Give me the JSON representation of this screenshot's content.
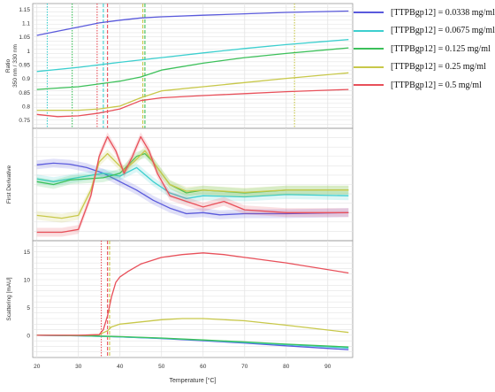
{
  "colors": {
    "s1": "#5a5adc",
    "s2": "#3ccfcf",
    "s3": "#3cc05a",
    "s4": "#c8c84a",
    "s5": "#e8505a",
    "grid": "#e4e4e4",
    "axis": "#9a9a9a",
    "text": "#333333"
  },
  "legend": [
    {
      "label": "[TTPBgp12] = 0.0338 mg/ml",
      "color": "#5a5adc"
    },
    {
      "label": "[TTPBgp12] = 0.0675 mg/ml",
      "color": "#3ccfcf"
    },
    {
      "label": "[TTPBgp12] = 0.125 mg/ml",
      "color": "#3cc05a"
    },
    {
      "label": "[TTPBgp12] = 0.25 mg/ml",
      "color": "#c8c84a"
    },
    {
      "label": "[TTPBgp12] = 0.5 mg/ml",
      "color": "#e8505a"
    }
  ],
  "chart_data": [
    {
      "type": "line",
      "panel": "ratio",
      "ylabel": "Ratio\n350 nm / 330 nm",
      "ylim": [
        0.72,
        1.17
      ],
      "yticks": [
        "1.15",
        "1.1",
        "1.05",
        "1",
        "0.95",
        "0.9",
        "0.85",
        "0.8",
        "0.75"
      ],
      "xlim": [
        19,
        96
      ],
      "grid": true,
      "series": [
        {
          "name": "[TTPBgp12] = 0.0338 mg/ml",
          "color": "#5a5adc",
          "x": [
            20,
            25,
            30,
            35,
            40,
            45,
            50,
            60,
            70,
            80,
            95
          ],
          "y": [
            1.055,
            1.07,
            1.085,
            1.1,
            1.11,
            1.118,
            1.122,
            1.128,
            1.133,
            1.138,
            1.143
          ]
        },
        {
          "name": "[TTPBgp12] = 0.0675 mg/ml",
          "color": "#3ccfcf",
          "x": [
            20,
            30,
            40,
            50,
            60,
            70,
            80,
            95
          ],
          "y": [
            0.925,
            0.94,
            0.958,
            0.975,
            0.992,
            1.008,
            1.022,
            1.04
          ]
        },
        {
          "name": "[TTPBgp12] = 0.125 mg/ml",
          "color": "#3cc05a",
          "x": [
            20,
            30,
            40,
            45,
            50,
            60,
            70,
            80,
            95
          ],
          "y": [
            0.86,
            0.87,
            0.89,
            0.905,
            0.93,
            0.955,
            0.975,
            0.99,
            1.01
          ]
        },
        {
          "name": "[TTPBgp12] = 0.25 mg/ml",
          "color": "#c8c84a",
          "x": [
            20,
            30,
            35,
            40,
            45,
            50,
            60,
            70,
            80,
            95
          ],
          "y": [
            0.785,
            0.785,
            0.79,
            0.8,
            0.83,
            0.855,
            0.87,
            0.885,
            0.9,
            0.92
          ]
        },
        {
          "name": "[TTPBgp12] = 0.5 mg/ml",
          "color": "#e8505a",
          "x": [
            20,
            25,
            30,
            35,
            40,
            45,
            50,
            60,
            70,
            80,
            95
          ],
          "y": [
            0.77,
            0.762,
            0.765,
            0.775,
            0.79,
            0.82,
            0.83,
            0.838,
            0.845,
            0.852,
            0.86
          ]
        }
      ],
      "markers": [
        {
          "x": 22.5,
          "color": "#3ccfcf",
          "style": "dotted"
        },
        {
          "x": 28.5,
          "color": "#3cc05a",
          "style": "dotted"
        },
        {
          "x": 34.5,
          "color": "#e8505a",
          "style": "dotted"
        },
        {
          "x": 36.0,
          "color": "#3ccfcf",
          "style": "dashed"
        },
        {
          "x": 37.0,
          "color": "#e8505a",
          "style": "dashed"
        },
        {
          "x": 45.5,
          "color": "#c8c84a",
          "style": "dashed"
        },
        {
          "x": 46.0,
          "color": "#3cc05a",
          "style": "dashed"
        },
        {
          "x": 82.0,
          "color": "#c8c84a",
          "style": "dotted"
        }
      ]
    },
    {
      "type": "line",
      "panel": "derivative",
      "ylabel": "First Derivative",
      "ylim": [
        -1,
        1
      ],
      "xlim": [
        19,
        96
      ],
      "grid": true,
      "series": [
        {
          "name": "[TTPBgp12] = 0.0338 mg/ml",
          "color": "#5a5adc",
          "x": [
            20,
            24,
            28,
            32,
            36,
            40,
            44,
            48,
            52,
            56,
            60,
            64,
            70,
            80,
            95
          ],
          "y": [
            0.35,
            0.38,
            0.36,
            0.3,
            0.2,
            0.05,
            -0.1,
            -0.28,
            -0.42,
            -0.52,
            -0.5,
            -0.54,
            -0.52,
            -0.52,
            -0.5
          ]
        },
        {
          "name": "[TTPBgp12] = 0.0675 mg/ml",
          "color": "#3ccfcf",
          "x": [
            20,
            24,
            28,
            32,
            36,
            40,
            44,
            48,
            52,
            56,
            60,
            70,
            80,
            95
          ],
          "y": [
            0.1,
            0.05,
            0.1,
            0.15,
            0.2,
            0.15,
            0.3,
            0.05,
            -0.15,
            -0.25,
            -0.2,
            -0.22,
            -0.18,
            -0.2
          ]
        },
        {
          "name": "[TTPBgp12] = 0.125 mg/ml",
          "color": "#3cc05a",
          "x": [
            20,
            24,
            28,
            32,
            36,
            40,
            44,
            46,
            48,
            52,
            56,
            60,
            70,
            80,
            95
          ],
          "y": [
            0.05,
            0.0,
            0.08,
            0.1,
            0.12,
            0.2,
            0.5,
            0.55,
            0.4,
            0.0,
            -0.15,
            -0.1,
            -0.15,
            -0.1,
            -0.1
          ]
        },
        {
          "name": "[TTPBgp12] = 0.25 mg/ml",
          "color": "#c8c84a",
          "x": [
            20,
            26,
            30,
            33,
            35,
            37,
            39,
            41,
            44,
            46,
            48,
            52,
            56,
            60,
            70,
            80,
            95
          ],
          "y": [
            -0.55,
            -0.6,
            -0.55,
            -0.1,
            0.4,
            0.55,
            0.4,
            0.25,
            0.45,
            0.6,
            0.4,
            0.0,
            -0.12,
            -0.1,
            -0.14,
            -0.1,
            -0.1
          ]
        },
        {
          "name": "[TTPBgp12] = 0.5 mg/ml",
          "color": "#e8505a",
          "x": [
            20,
            26,
            30,
            33,
            35,
            37,
            39,
            41,
            43,
            45,
            47,
            49,
            52,
            56,
            60,
            65,
            70,
            80,
            95
          ],
          "y": [
            -0.85,
            -0.85,
            -0.8,
            -0.2,
            0.5,
            0.85,
            0.6,
            0.2,
            0.5,
            0.85,
            0.6,
            0.2,
            -0.2,
            -0.3,
            -0.4,
            -0.3,
            -0.45,
            -0.5,
            -0.5
          ]
        }
      ]
    },
    {
      "type": "line",
      "panel": "scattering",
      "ylabel": "Scattering [mAU]",
      "ylim": [
        -4,
        17
      ],
      "yticks": [
        "15",
        "10",
        "5",
        "0"
      ],
      "xlim": [
        19,
        96
      ],
      "xticks": [
        "20",
        "30",
        "40",
        "50",
        "60",
        "70",
        "80",
        "90"
      ],
      "xlabel": "Temperature [°C]",
      "grid": true,
      "series": [
        {
          "name": "[TTPBgp12] = 0.0338 mg/ml",
          "color": "#5a5adc",
          "x": [
            20,
            30,
            40,
            50,
            60,
            70,
            80,
            95
          ],
          "y": [
            0,
            -0.1,
            -0.3,
            -0.6,
            -1.0,
            -1.4,
            -1.9,
            -2.6
          ]
        },
        {
          "name": "[TTPBgp12] = 0.0675 mg/ml",
          "color": "#3ccfcf",
          "x": [
            20,
            30,
            40,
            50,
            60,
            70,
            80,
            95
          ],
          "y": [
            0,
            -0.1,
            -0.3,
            -0.55,
            -0.9,
            -1.3,
            -1.7,
            -2.3
          ]
        },
        {
          "name": "[TTPBgp12] = 0.125 mg/ml",
          "color": "#3cc05a",
          "x": [
            20,
            30,
            40,
            50,
            60,
            70,
            80,
            95
          ],
          "y": [
            0,
            -0.05,
            -0.25,
            -0.5,
            -0.85,
            -1.2,
            -1.6,
            -2.1
          ]
        },
        {
          "name": "[TTPBgp12] = 0.25 mg/ml",
          "color": "#c8c84a",
          "x": [
            20,
            30,
            35,
            37,
            38,
            40,
            45,
            50,
            55,
            60,
            70,
            80,
            95
          ],
          "y": [
            0,
            0,
            0.1,
            0.8,
            1.5,
            2.0,
            2.4,
            2.8,
            3.0,
            3.0,
            2.6,
            1.8,
            0.5
          ]
        },
        {
          "name": "[TTPBgp12] = 0.5 mg/ml",
          "color": "#e8505a",
          "x": [
            20,
            30,
            35,
            36,
            37,
            38,
            39,
            40,
            42,
            45,
            50,
            55,
            60,
            65,
            70,
            80,
            95
          ],
          "y": [
            0,
            0,
            0.1,
            1.0,
            3.5,
            7.0,
            9.5,
            10.5,
            11.5,
            12.8,
            14.0,
            14.5,
            14.8,
            14.5,
            14.0,
            13.0,
            11.2
          ]
        }
      ],
      "markers": [
        {
          "x": 35.5,
          "color": "#e8505a",
          "style": "dotted"
        },
        {
          "x": 37.0,
          "color": "#e8505a",
          "style": "dashed"
        },
        {
          "x": 37.5,
          "color": "#c8c84a",
          "style": "dashed"
        }
      ]
    }
  ]
}
